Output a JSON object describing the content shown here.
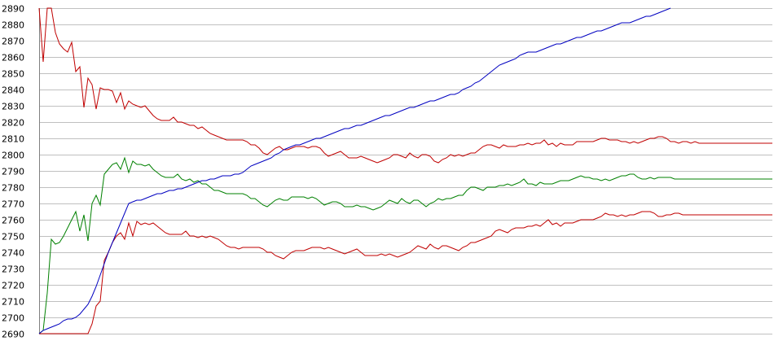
{
  "chart_data": {
    "type": "line",
    "title": "",
    "xlabel": "",
    "ylabel": "",
    "grid": true,
    "legend": "none",
    "ylim": [
      2690,
      2890
    ],
    "yticks": [
      "2890",
      "2880",
      "2870",
      "2860",
      "2850",
      "2840",
      "2830",
      "2820",
      "2810",
      "2800",
      "2790",
      "2780",
      "2770",
      "2760",
      "2750",
      "2740",
      "2730",
      "2720",
      "2710",
      "2700",
      "2690"
    ],
    "xlim": [
      0,
      180
    ],
    "series": [
      {
        "color": "#c00000",
        "values": [
          2890,
          2857,
          2890,
          2890,
          2875,
          2868,
          2865,
          2863,
          2869,
          2851,
          2854,
          2829,
          2847,
          2843,
          2828,
          2841,
          2840,
          2840,
          2839,
          2832,
          2838,
          2828,
          2833,
          2831,
          2830,
          2829,
          2830,
          2827,
          2824,
          2822,
          2821,
          2821,
          2821,
          2823,
          2820,
          2820,
          2819,
          2818,
          2818,
          2816,
          2817,
          2815,
          2813,
          2812,
          2811,
          2810,
          2809,
          2809,
          2809,
          2809,
          2809,
          2808,
          2806,
          2806,
          2804,
          2801,
          2800,
          2802,
          2804,
          2805,
          2803,
          2803,
          2804,
          2805,
          2805,
          2805,
          2804,
          2805,
          2805,
          2804,
          2801,
          2799,
          2800,
          2801,
          2802,
          2800,
          2798,
          2798,
          2798,
          2799,
          2798,
          2797,
          2796,
          2795,
          2796,
          2797,
          2798,
          2800,
          2800,
          2799,
          2798,
          2801,
          2799,
          2798,
          2800,
          2800,
          2799,
          2796,
          2795,
          2797,
          2798,
          2800,
          2799,
          2800,
          2799,
          2800,
          2801,
          2801,
          2803,
          2805,
          2806,
          2806,
          2805,
          2804,
          2806,
          2805,
          2805,
          2805,
          2806,
          2806,
          2807,
          2806,
          2807,
          2807,
          2809,
          2806,
          2807,
          2805,
          2807,
          2806,
          2806,
          2806,
          2808,
          2808,
          2808,
          2808,
          2808,
          2809,
          2810,
          2810,
          2809,
          2809,
          2809,
          2808,
          2808,
          2807,
          2808,
          2807,
          2808,
          2809,
          2810,
          2810,
          2811,
          2811,
          2810,
          2808,
          2808,
          2807,
          2808,
          2808,
          2807,
          2808,
          2807,
          2807,
          2807,
          2807,
          2807,
          2807,
          2807,
          2807,
          2807,
          2807,
          2807,
          2807,
          2807,
          2807,
          2807,
          2807,
          2807,
          2807,
          2807
        ]
      },
      {
        "color": "#008000",
        "values": [
          2690,
          2692,
          2715,
          2748,
          2745,
          2746,
          2750,
          2755,
          2760,
          2765,
          2753,
          2763,
          2747,
          2770,
          2775,
          2769,
          2788,
          2791,
          2794,
          2795,
          2791,
          2798,
          2789,
          2796,
          2794,
          2794,
          2793,
          2794,
          2791,
          2789,
          2787,
          2786,
          2786,
          2786,
          2788,
          2785,
          2784,
          2785,
          2783,
          2784,
          2782,
          2782,
          2780,
          2778,
          2778,
          2777,
          2776,
          2776,
          2776,
          2776,
          2776,
          2775,
          2773,
          2773,
          2771,
          2769,
          2768,
          2770,
          2772,
          2773,
          2772,
          2772,
          2774,
          2774,
          2774,
          2774,
          2773,
          2774,
          2773,
          2771,
          2769,
          2770,
          2771,
          2771,
          2770,
          2768,
          2768,
          2768,
          2769,
          2768,
          2768,
          2767,
          2766,
          2767,
          2768,
          2770,
          2772,
          2771,
          2770,
          2773,
          2771,
          2770,
          2772,
          2772,
          2770,
          2768,
          2770,
          2771,
          2773,
          2772,
          2773,
          2773,
          2774,
          2775,
          2775,
          2778,
          2780,
          2780,
          2779,
          2778,
          2780,
          2780,
          2780,
          2781,
          2781,
          2782,
          2781,
          2782,
          2783,
          2785,
          2782,
          2782,
          2781,
          2783,
          2782,
          2782,
          2782,
          2783,
          2784,
          2784,
          2784,
          2785,
          2786,
          2787,
          2786,
          2786,
          2785,
          2785,
          2784,
          2785,
          2784,
          2785,
          2786,
          2787,
          2787,
          2788,
          2788,
          2786,
          2785,
          2785,
          2786,
          2785,
          2786,
          2786,
          2786,
          2786,
          2785,
          2785,
          2785,
          2785,
          2785,
          2785,
          2785,
          2785,
          2785,
          2785,
          2785,
          2785,
          2785,
          2785,
          2785,
          2785,
          2785,
          2785,
          2785,
          2785,
          2785,
          2785,
          2785,
          2785,
          2785
        ]
      },
      {
        "color": "#c00000",
        "values": [
          2690,
          2690,
          2690,
          2690,
          2690,
          2690,
          2690,
          2690,
          2690,
          2690,
          2690,
          2690,
          2690,
          2696,
          2707,
          2710,
          2735,
          2740,
          2746,
          2750,
          2752,
          2748,
          2758,
          2750,
          2759,
          2757,
          2758,
          2757,
          2758,
          2756,
          2754,
          2752,
          2751,
          2751,
          2751,
          2751,
          2753,
          2750,
          2750,
          2749,
          2750,
          2749,
          2750,
          2749,
          2748,
          2746,
          2744,
          2743,
          2743,
          2742,
          2743,
          2743,
          2743,
          2743,
          2743,
          2742,
          2740,
          2740,
          2738,
          2737,
          2736,
          2738,
          2740,
          2741,
          2741,
          2741,
          2742,
          2743,
          2743,
          2743,
          2742,
          2743,
          2742,
          2741,
          2740,
          2739,
          2740,
          2741,
          2742,
          2740,
          2738,
          2738,
          2738,
          2738,
          2739,
          2738,
          2739,
          2738,
          2737,
          2738,
          2739,
          2740,
          2742,
          2744,
          2743,
          2742,
          2745,
          2743,
          2742,
          2744,
          2744,
          2743,
          2742,
          2741,
          2743,
          2744,
          2746,
          2746,
          2747,
          2748,
          2749,
          2750,
          2753,
          2754,
          2753,
          2752,
          2754,
          2755,
          2755,
          2755,
          2756,
          2756,
          2757,
          2756,
          2758,
          2760,
          2757,
          2758,
          2756,
          2758,
          2758,
          2758,
          2759,
          2760,
          2760,
          2760,
          2760,
          2761,
          2762,
          2764,
          2763,
          2763,
          2762,
          2763,
          2762,
          2763,
          2763,
          2764,
          2765,
          2765,
          2765,
          2764,
          2762,
          2762,
          2763,
          2763,
          2764,
          2764,
          2763,
          2763,
          2763,
          2763,
          2763,
          2763,
          2763,
          2763,
          2763,
          2763,
          2763,
          2763,
          2763,
          2763,
          2763,
          2763,
          2763,
          2763,
          2763,
          2763,
          2763,
          2763,
          2763
        ]
      },
      {
        "color": "#0000c0",
        "values": [
          2690,
          2692,
          2693,
          2694,
          2695,
          2696,
          2698,
          2699,
          2699,
          2700,
          2702,
          2705,
          2708,
          2713,
          2719,
          2726,
          2733,
          2740,
          2746,
          2752,
          2758,
          2764,
          2770,
          2771,
          2772,
          2772,
          2773,
          2774,
          2775,
          2776,
          2776,
          2777,
          2778,
          2778,
          2779,
          2779,
          2780,
          2781,
          2782,
          2783,
          2784,
          2784,
          2785,
          2785,
          2786,
          2787,
          2787,
          2787,
          2788,
          2788,
          2789,
          2791,
          2793,
          2794,
          2795,
          2796,
          2797,
          2798,
          2800,
          2801,
          2803,
          2804,
          2805,
          2806,
          2806,
          2807,
          2808,
          2809,
          2810,
          2810,
          2811,
          2812,
          2813,
          2814,
          2815,
          2816,
          2816,
          2817,
          2818,
          2818,
          2819,
          2820,
          2821,
          2822,
          2823,
          2824,
          2824,
          2825,
          2826,
          2827,
          2828,
          2829,
          2829,
          2830,
          2831,
          2832,
          2833,
          2833,
          2834,
          2835,
          2836,
          2837,
          2837,
          2838,
          2840,
          2841,
          2842,
          2844,
          2845,
          2847,
          2849,
          2851,
          2853,
          2855,
          2856,
          2857,
          2858,
          2859,
          2861,
          2862,
          2863,
          2863,
          2863,
          2864,
          2865,
          2866,
          2867,
          2868,
          2868,
          2869,
          2870,
          2871,
          2872,
          2872,
          2873,
          2874,
          2875,
          2876,
          2876,
          2877,
          2878,
          2879,
          2880,
          2881,
          2881,
          2881,
          2882,
          2883,
          2884,
          2885,
          2885,
          2886,
          2887,
          2888,
          2889,
          2890
        ]
      }
    ]
  }
}
